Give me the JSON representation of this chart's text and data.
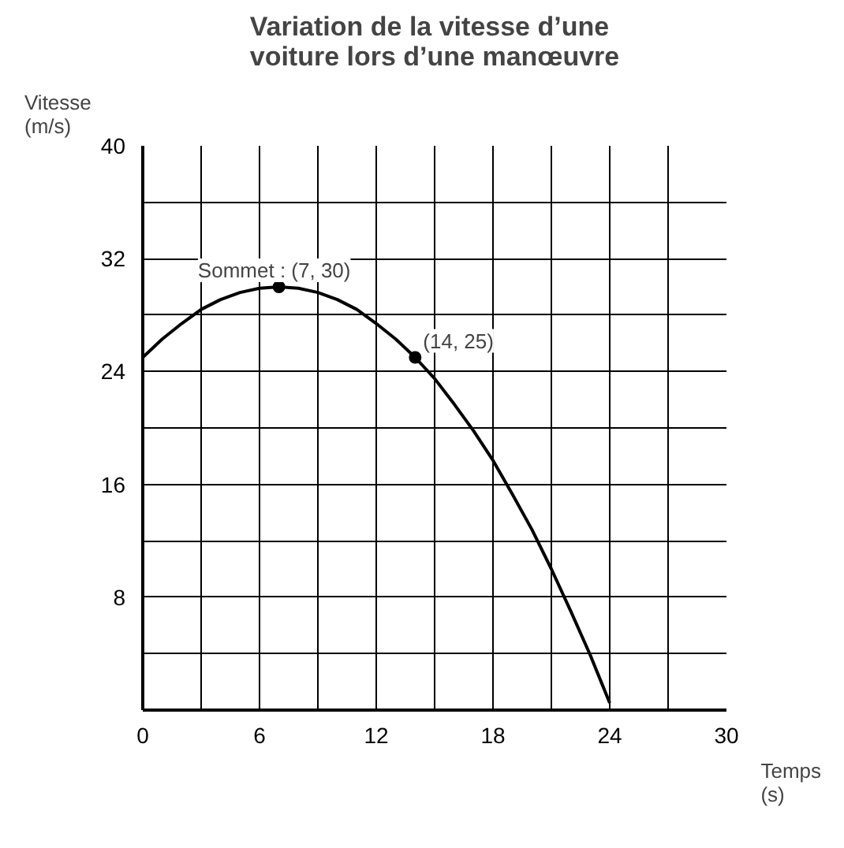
{
  "chart_data": {
    "type": "line",
    "title": "Variation de la vitesse d’une\nvoiture lors d’une manœuvre",
    "xlabel": "Temps\n(s)",
    "ylabel": "Vitesse\n(m/s)",
    "xlim": [
      0,
      30
    ],
    "ylim": [
      0,
      40
    ],
    "xticks": [
      0,
      {
        "value": 3,
        "label": null
      },
      6,
      {
        "value": 9,
        "label": null
      },
      12,
      {
        "value": 15,
        "label": null
      },
      18,
      {
        "value": 21,
        "label": null
      },
      24,
      {
        "value": 27,
        "label": null
      },
      30
    ],
    "yticks": [
      {
        "value": 4,
        "label": null
      },
      8,
      {
        "value": 12,
        "label": null
      },
      16,
      {
        "value": 20,
        "label": null
      },
      24,
      {
        "value": 28,
        "label": null
      },
      32,
      {
        "value": 36,
        "label": null
      },
      40
    ],
    "grid": true,
    "series": [
      {
        "color": "#000000",
        "x": [
          0,
          1,
          2,
          3,
          4,
          5,
          6,
          7,
          8,
          9,
          10,
          11,
          12,
          13,
          14,
          15,
          16,
          17,
          18,
          19,
          20,
          21,
          22,
          23,
          24
        ],
        "values": [
          25,
          26.3,
          27.4,
          28.4,
          29.1,
          29.6,
          29.9,
          30,
          29.9,
          29.6,
          29.1,
          28.4,
          27.4,
          26.3,
          25,
          23.5,
          21.7,
          19.8,
          17.7,
          15.3,
          12.8,
          10,
          7,
          3.9,
          0.5
        ]
      },
      {
        "type": "scatter",
        "color": "#000000",
        "marker": "circle",
        "x": [
          7,
          14
        ],
        "values": [
          30,
          25
        ]
      }
    ],
    "annotations": [
      {
        "text": "Sommet : (7, 30)",
        "x": 7,
        "y": 30
      },
      {
        "text": "(14, 25)",
        "x": 14,
        "y": 25
      }
    ]
  }
}
